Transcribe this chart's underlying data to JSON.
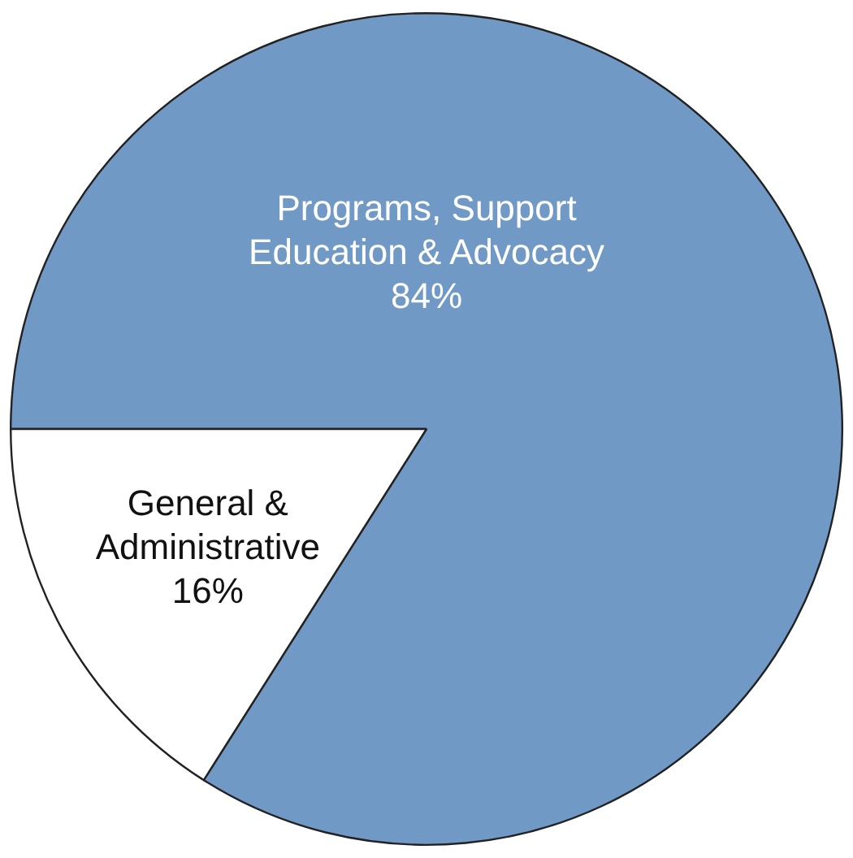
{
  "chart_data": {
    "type": "pie",
    "categories": [
      "Programs, Support Education & Advocacy",
      "General & Administrative"
    ],
    "values": [
      84,
      16
    ],
    "colors": [
      "#7099c6",
      "#ffffff"
    ],
    "value_labels": [
      "84%",
      "16%"
    ]
  }
}
